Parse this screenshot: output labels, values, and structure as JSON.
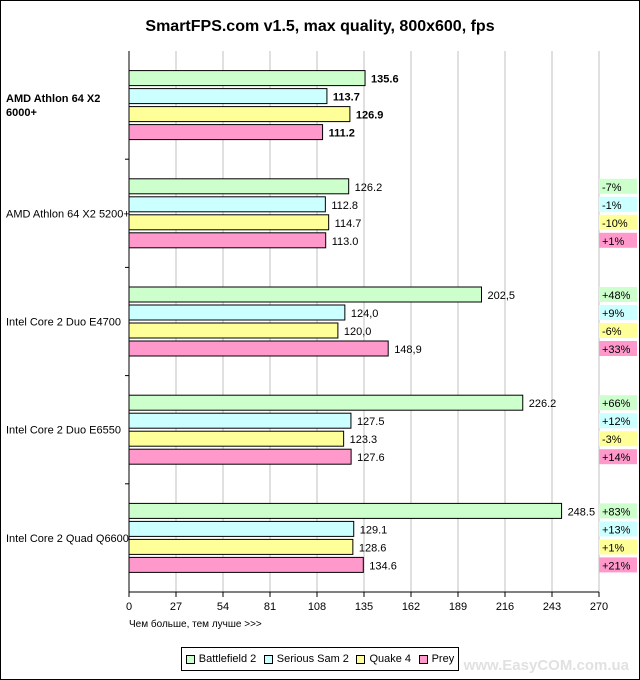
{
  "chart_data": {
    "type": "bar",
    "orientation": "horizontal",
    "title": "SmartFPS.com v1.5, max quality, 800x600, fps",
    "xlabel": "Чем больше, тем лучше >>>",
    "xlim": [
      0,
      270
    ],
    "xticks": [
      "0",
      "27",
      "54",
      "81",
      "108",
      "135",
      "162",
      "189",
      "216",
      "243",
      "270"
    ],
    "grid": true,
    "legend_position": "bottom",
    "categories": [
      "AMD Athlon 64 X2 6000+",
      "AMD Athlon 64 X2 5200+",
      "Intel Core 2 Duo E4700",
      "Intel Core 2 Duo E6550",
      "Intel Core 2 Quad Q6600"
    ],
    "category_label_lines": [
      [
        "AMD Athlon 64 X2",
        "6000+"
      ],
      [
        "AMD Athlon 64 X2 5200+"
      ],
      [
        "Intel Core 2 Duo E4700"
      ],
      [
        "Intel Core 2 Duo E6550"
      ],
      [
        "Intel Core 2 Quad Q6600"
      ]
    ],
    "bold_category_index": 0,
    "series": [
      {
        "name": "Battlefield 2",
        "color": "#ccffcc",
        "values": [
          135.6,
          126.2,
          202.5,
          226.2,
          248.5
        ],
        "labels": [
          "135.6",
          "126.2",
          "202,5",
          "226.2",
          "248.5"
        ],
        "deltas": [
          "",
          "-7%",
          "+48%",
          "+66%",
          "+83%"
        ]
      },
      {
        "name": "Serious Sam 2",
        "color": "#ccffff",
        "values": [
          113.7,
          112.8,
          124.0,
          127.5,
          129.1
        ],
        "labels": [
          "113.7",
          "112.8",
          "124,0",
          "127.5",
          "129.1"
        ],
        "deltas": [
          "",
          "-1%",
          "+9%",
          "+12%",
          "+13%"
        ]
      },
      {
        "name": "Quake 4",
        "color": "#ffff99",
        "values": [
          126.9,
          114.7,
          120.0,
          123.3,
          128.6
        ],
        "labels": [
          "126.9",
          "114.7",
          "120,0",
          "123.3",
          "128.6"
        ],
        "deltas": [
          "",
          "-10%",
          "-6%",
          "-3%",
          "+1%"
        ]
      },
      {
        "name": "Prey",
        "color": "#ff99cc",
        "values": [
          111.2,
          113.0,
          148.9,
          127.6,
          134.6
        ],
        "labels": [
          "111.2",
          "113.0",
          "148,9",
          "127.6",
          "134.6"
        ],
        "deltas": [
          "",
          "+1%",
          "+33%",
          "+14%",
          "+21%"
        ]
      }
    ]
  },
  "watermark": "www.EasyCOM.com.ua"
}
